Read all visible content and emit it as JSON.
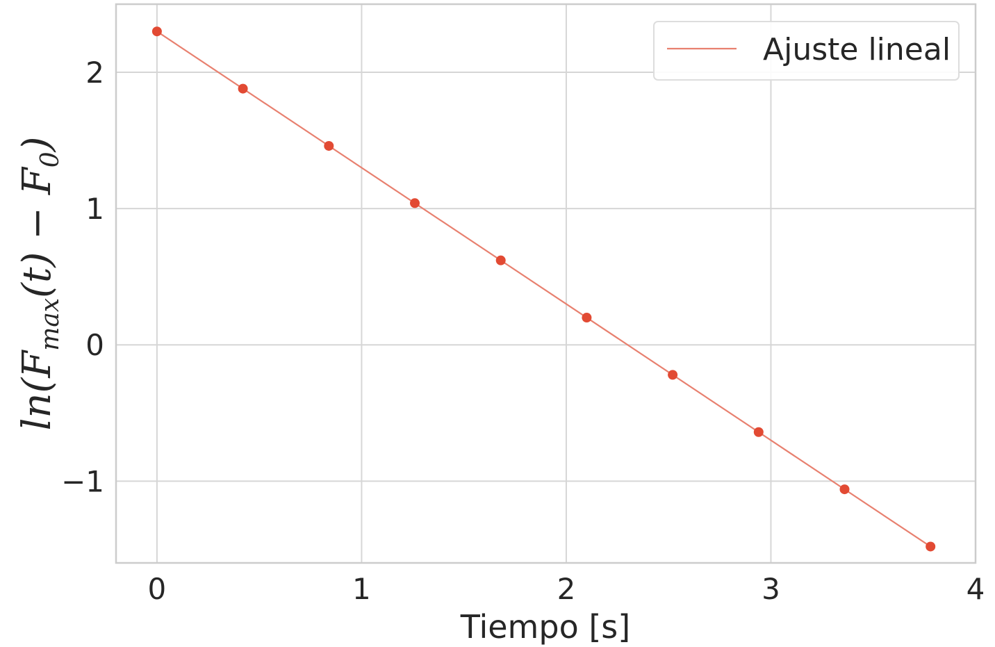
{
  "chart_data": {
    "type": "scatter",
    "title": "",
    "xlabel": "Tiempo [s]",
    "ylabel": "ln(F_max(t) − F₀)",
    "ylabel_parts": {
      "prefix": "ln(F",
      "subscript": "max",
      "middle": "(t) − F",
      "subscript2": "0",
      "suffix": ")"
    },
    "xlim": [
      -0.2,
      4.0
    ],
    "ylim": [
      -1.6,
      2.5
    ],
    "xticks": [
      0,
      1,
      2,
      3,
      4
    ],
    "xtick_labels": [
      "0",
      "1",
      "2",
      "3",
      "4"
    ],
    "yticks": [
      -1,
      0,
      1,
      2
    ],
    "ytick_labels": [
      "−1",
      "0",
      "1",
      "2"
    ],
    "grid": true,
    "legend": {
      "position": "top-right",
      "entries": [
        "Ajuste lineal"
      ]
    },
    "series": [
      {
        "kind": "points",
        "color": "#e24a33",
        "x": [
          0.0,
          0.42,
          0.84,
          1.26,
          1.68,
          2.1,
          2.52,
          2.94,
          3.36,
          3.78
        ],
        "y": [
          2.3,
          1.88,
          1.46,
          1.04,
          0.62,
          0.2,
          -0.22,
          -0.64,
          -1.06,
          -1.48
        ]
      },
      {
        "kind": "line",
        "name": "Ajuste lineal",
        "color": "#e8806f",
        "x": [
          0.0,
          3.78
        ],
        "y": [
          2.3,
          -1.48
        ]
      }
    ],
    "colors": {
      "points": "#e24a33",
      "fit_line": "#e8806f",
      "grid": "#d6d6d6",
      "frame": "#cccccc",
      "text": "#262626"
    }
  }
}
